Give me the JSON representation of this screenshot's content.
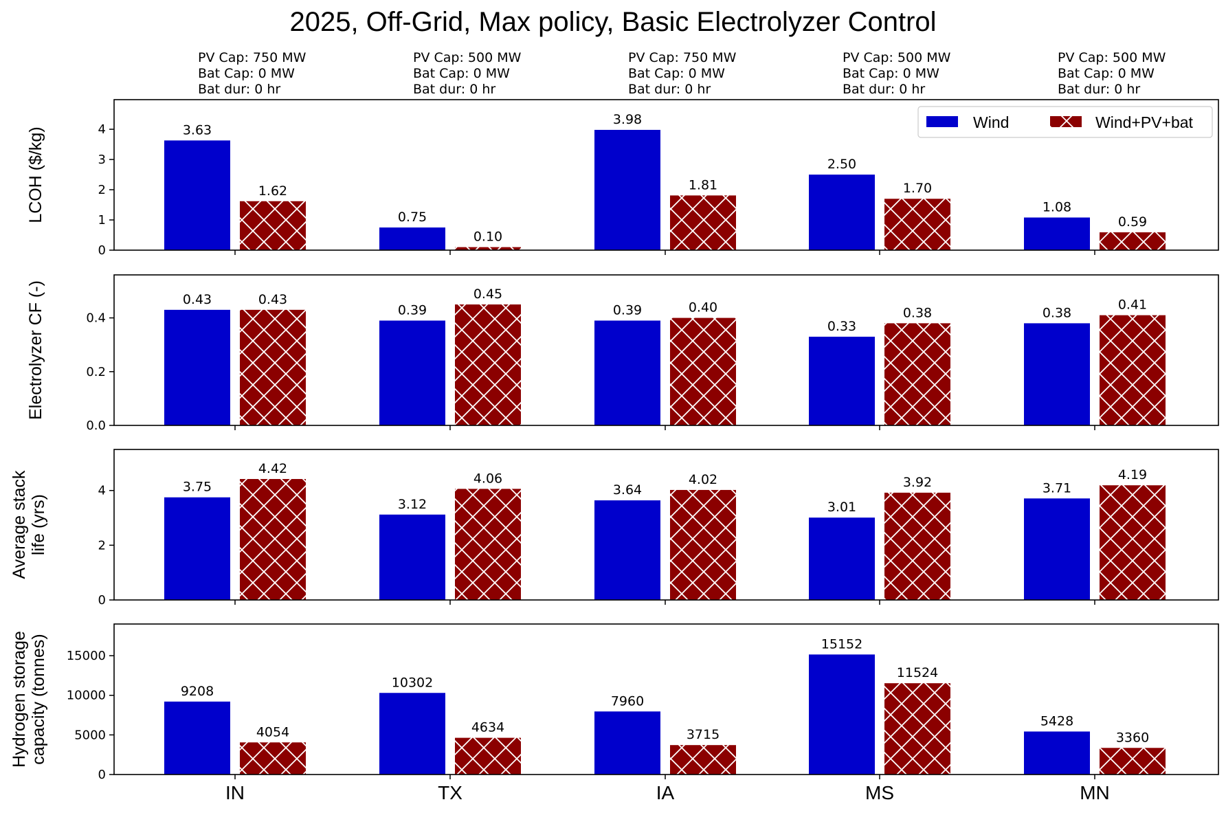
{
  "chart_data": {
    "type": "bar",
    "title": "2025, Off-Grid, Max policy, Basic Electrolyzer Control",
    "categories": [
      "IN",
      "TX",
      "IA",
      "MS",
      "MN"
    ],
    "annotations": [
      [
        "PV Cap: 750 MW",
        "Bat Cap: 0 MW",
        "Bat dur: 0 hr"
      ],
      [
        "PV Cap: 500 MW",
        "Bat Cap: 0 MW",
        "Bat dur: 0 hr"
      ],
      [
        "PV Cap: 750 MW",
        "Bat Cap: 0 MW",
        "Bat dur: 0 hr"
      ],
      [
        "PV Cap: 500 MW",
        "Bat Cap: 0 MW",
        "Bat dur: 0 hr"
      ],
      [
        "PV Cap: 500 MW",
        "Bat Cap: 0 MW",
        "Bat dur: 0 hr"
      ]
    ],
    "legend": {
      "placement": "upper-right of first panel",
      "entries": [
        {
          "name": "Wind",
          "color": "#0000cc",
          "hatch": "none"
        },
        {
          "name": "Wind+PV+bat",
          "color": "#8b0000",
          "hatch": "cross"
        }
      ]
    },
    "grid": false,
    "panels": [
      {
        "ylabel": [
          "LCOH ($/kg)"
        ],
        "ylim": [
          0,
          4.98
        ],
        "yticks": [
          0,
          1,
          2,
          3,
          4
        ],
        "ytick_labels": [
          "0",
          "1",
          "2",
          "3",
          "4"
        ],
        "series": [
          {
            "name": "Wind",
            "values": [
              3.63,
              0.75,
              3.98,
              2.5,
              1.08
            ],
            "labels": [
              "3.63",
              "0.75",
              "3.98",
              "2.50",
              "1.08"
            ]
          },
          {
            "name": "Wind+PV+bat",
            "values": [
              1.62,
              0.1,
              1.81,
              1.7,
              0.59
            ],
            "labels": [
              "1.62",
              "0.10",
              "1.81",
              "1.70",
              "0.59"
            ]
          }
        ]
      },
      {
        "ylabel": [
          "Electrolyzer CF (-)"
        ],
        "ylim": [
          0,
          0.56
        ],
        "yticks": [
          0,
          0.2,
          0.4
        ],
        "ytick_labels": [
          "0.0",
          "0.2",
          "0.4"
        ],
        "series": [
          {
            "name": "Wind",
            "values": [
              0.43,
              0.39,
              0.39,
              0.33,
              0.38
            ],
            "labels": [
              "0.43",
              "0.39",
              "0.39",
              "0.33",
              "0.38"
            ]
          },
          {
            "name": "Wind+PV+bat",
            "values": [
              0.43,
              0.45,
              0.4,
              0.38,
              0.41
            ],
            "labels": [
              "0.43",
              "0.45",
              "0.40",
              "0.38",
              "0.41"
            ]
          }
        ]
      },
      {
        "ylabel": [
          "Average stack",
          "life (yrs)"
        ],
        "ylim": [
          0,
          5.5
        ],
        "yticks": [
          0,
          2,
          4
        ],
        "ytick_labels": [
          "0",
          "2",
          "4"
        ],
        "series": [
          {
            "name": "Wind",
            "values": [
              3.75,
              3.12,
              3.64,
              3.01,
              3.71
            ],
            "labels": [
              "3.75",
              "3.12",
              "3.64",
              "3.01",
              "3.71"
            ]
          },
          {
            "name": "Wind+PV+bat",
            "values": [
              4.42,
              4.06,
              4.02,
              3.92,
              4.19
            ],
            "labels": [
              "4.42",
              "4.06",
              "4.02",
              "3.92",
              "4.19"
            ]
          }
        ]
      },
      {
        "ylabel": [
          "Hydrogen storage",
          "capacity (tonnes)"
        ],
        "ylim": [
          0,
          19000
        ],
        "yticks": [
          0,
          5000,
          10000,
          15000
        ],
        "ytick_labels": [
          "0",
          "5000",
          "10000",
          "15000"
        ],
        "series": [
          {
            "name": "Wind",
            "values": [
              9208,
              10302,
              7960,
              15152,
              5428
            ],
            "labels": [
              "9208",
              "10302",
              "7960",
              "15152",
              "5428"
            ]
          },
          {
            "name": "Wind+PV+bat",
            "values": [
              4054,
              4634,
              3715,
              11524,
              3360
            ],
            "labels": [
              "4054",
              "4634",
              "3715",
              "11524",
              "3360"
            ]
          }
        ]
      }
    ]
  }
}
